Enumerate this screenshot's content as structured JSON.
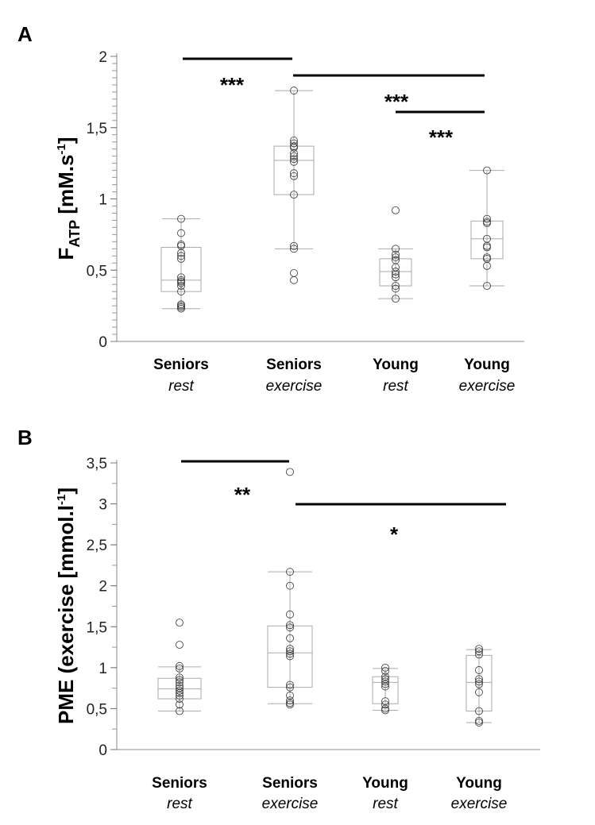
{
  "chart_data": [
    {
      "type": "box",
      "panel_label": "A",
      "ylabel": {
        "main": "F",
        "sub": "ATP",
        "unit_pre": " [mM.s",
        "sup": "-1",
        "unit_post": "]"
      },
      "ylim": [
        0,
        2
      ],
      "yticks": [
        {
          "v": 0,
          "label": "0"
        },
        {
          "v": 0.5,
          "label": "0,5"
        },
        {
          "v": 1,
          "label": "1"
        },
        {
          "v": 1.5,
          "label": "1,5"
        },
        {
          "v": 2,
          "label": "2"
        }
      ],
      "minor_tick_step": 0.05,
      "categories": [
        {
          "group": "Seniors",
          "condition": "rest"
        },
        {
          "group": "Seniors",
          "condition": "exercise"
        },
        {
          "group": "Young",
          "condition": "rest"
        },
        {
          "group": "Young",
          "condition": "exercise"
        }
      ],
      "boxes": [
        {
          "whisker_low": 0.23,
          "q1": 0.35,
          "median": 0.43,
          "q3": 0.66,
          "whisker_high": 0.86,
          "points": [
            0.86,
            0.76,
            0.68,
            0.67,
            0.62,
            0.6,
            0.58,
            0.45,
            0.43,
            0.42,
            0.41,
            0.39,
            0.35,
            0.26,
            0.25,
            0.24,
            0.23
          ]
        },
        {
          "whisker_low": 0.65,
          "q1": 1.03,
          "median": 1.27,
          "q3": 1.37,
          "whisker_high": 1.76,
          "points": [
            1.76,
            1.41,
            1.39,
            1.37,
            1.36,
            1.32,
            1.3,
            1.28,
            1.26,
            1.18,
            1.16,
            1.03,
            0.67,
            0.65,
            0.48,
            0.43
          ]
        },
        {
          "whisker_low": 0.3,
          "q1": 0.39,
          "median": 0.49,
          "q3": 0.58,
          "whisker_high": 0.65,
          "points": [
            0.92,
            0.65,
            0.61,
            0.59,
            0.57,
            0.52,
            0.49,
            0.47,
            0.45,
            0.39,
            0.37,
            0.3
          ]
        },
        {
          "whisker_low": 0.39,
          "q1": 0.58,
          "median": 0.72,
          "q3": 0.845,
          "whisker_high": 1.2,
          "points": [
            1.2,
            0.86,
            0.84,
            0.83,
            0.72,
            0.67,
            0.66,
            0.59,
            0.58,
            0.53,
            0.39
          ]
        }
      ],
      "significance": [
        {
          "from": 0,
          "to": 1,
          "label": "***"
        },
        {
          "from": 1,
          "to": 3,
          "label": "***"
        },
        {
          "from": 2,
          "to": 3,
          "label": "***"
        }
      ]
    },
    {
      "type": "box",
      "panel_label": "B",
      "ylabel": {
        "main": "PME (exercise [mmol.l",
        "sup": "-1",
        "unit_post": "]"
      },
      "ylim": [
        0,
        3.5
      ],
      "yticks": [
        {
          "v": 0,
          "label": "0"
        },
        {
          "v": 0.5,
          "label": "0,5"
        },
        {
          "v": 1,
          "label": "1"
        },
        {
          "v": 1.5,
          "label": "1,5"
        },
        {
          "v": 2,
          "label": "2"
        },
        {
          "v": 2.5,
          "label": "2,5"
        },
        {
          "v": 3,
          "label": "3"
        },
        {
          "v": 3.5,
          "label": "3,5"
        }
      ],
      "minor_tick_step": 0.25,
      "categories": [
        {
          "group": "Seniors",
          "condition": "rest"
        },
        {
          "group": "Seniors",
          "condition": "exercise"
        },
        {
          "group": "Young",
          "condition": "rest"
        },
        {
          "group": "Young",
          "condition": "exercise"
        }
      ],
      "boxes": [
        {
          "whisker_low": 0.47,
          "q1": 0.62,
          "median": 0.74,
          "q3": 0.87,
          "whisker_high": 1.01,
          "points": [
            1.55,
            1.28,
            1.02,
            0.99,
            0.88,
            0.85,
            0.82,
            0.78,
            0.75,
            0.72,
            0.69,
            0.66,
            0.62,
            0.55,
            0.47
          ]
        },
        {
          "whisker_low": 0.56,
          "q1": 0.76,
          "median": 1.18,
          "q3": 1.51,
          "whisker_high": 2.17,
          "points": [
            3.39,
            2.17,
            2.0,
            1.65,
            1.52,
            1.49,
            1.36,
            1.23,
            1.2,
            1.17,
            1.14,
            0.79,
            0.76,
            0.66,
            0.6,
            0.57,
            0.55
          ]
        },
        {
          "whisker_low": 0.48,
          "q1": 0.56,
          "median": 0.82,
          "q3": 0.89,
          "whisker_high": 0.99,
          "points": [
            1.0,
            0.96,
            0.89,
            0.86,
            0.83,
            0.8,
            0.77,
            0.59,
            0.55,
            0.5,
            0.48
          ]
        },
        {
          "whisker_low": 0.33,
          "q1": 0.47,
          "median": 0.82,
          "q3": 1.15,
          "whisker_high": 1.22,
          "points": [
            1.23,
            1.2,
            1.16,
            0.97,
            0.86,
            0.83,
            0.8,
            0.7,
            0.47,
            0.35,
            0.33
          ]
        }
      ],
      "significance": [
        {
          "from": 0,
          "to": 1,
          "label": "**"
        },
        {
          "from": 1,
          "to": 3,
          "label": "*"
        }
      ]
    }
  ],
  "colors": {
    "box": "#aaaaaa",
    "points": "#333333",
    "bars": "#000000"
  }
}
